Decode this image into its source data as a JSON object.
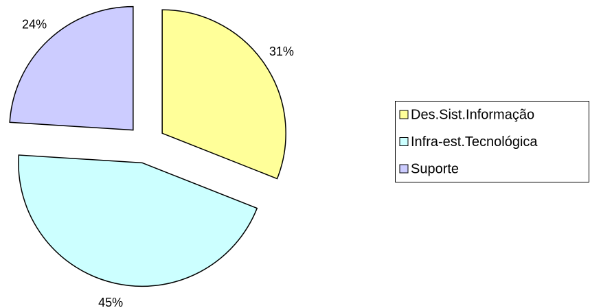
{
  "chart_data": {
    "type": "pie",
    "categories": [
      "Des.Sist.Informação",
      "Infra-est.Tecnológica",
      "Suporte"
    ],
    "values": [
      31,
      45,
      24
    ],
    "value_labels": [
      "31%",
      "45%",
      "24%"
    ],
    "colors": [
      "#ffff99",
      "#ccffff",
      "#ccccff"
    ],
    "legend": "right"
  }
}
